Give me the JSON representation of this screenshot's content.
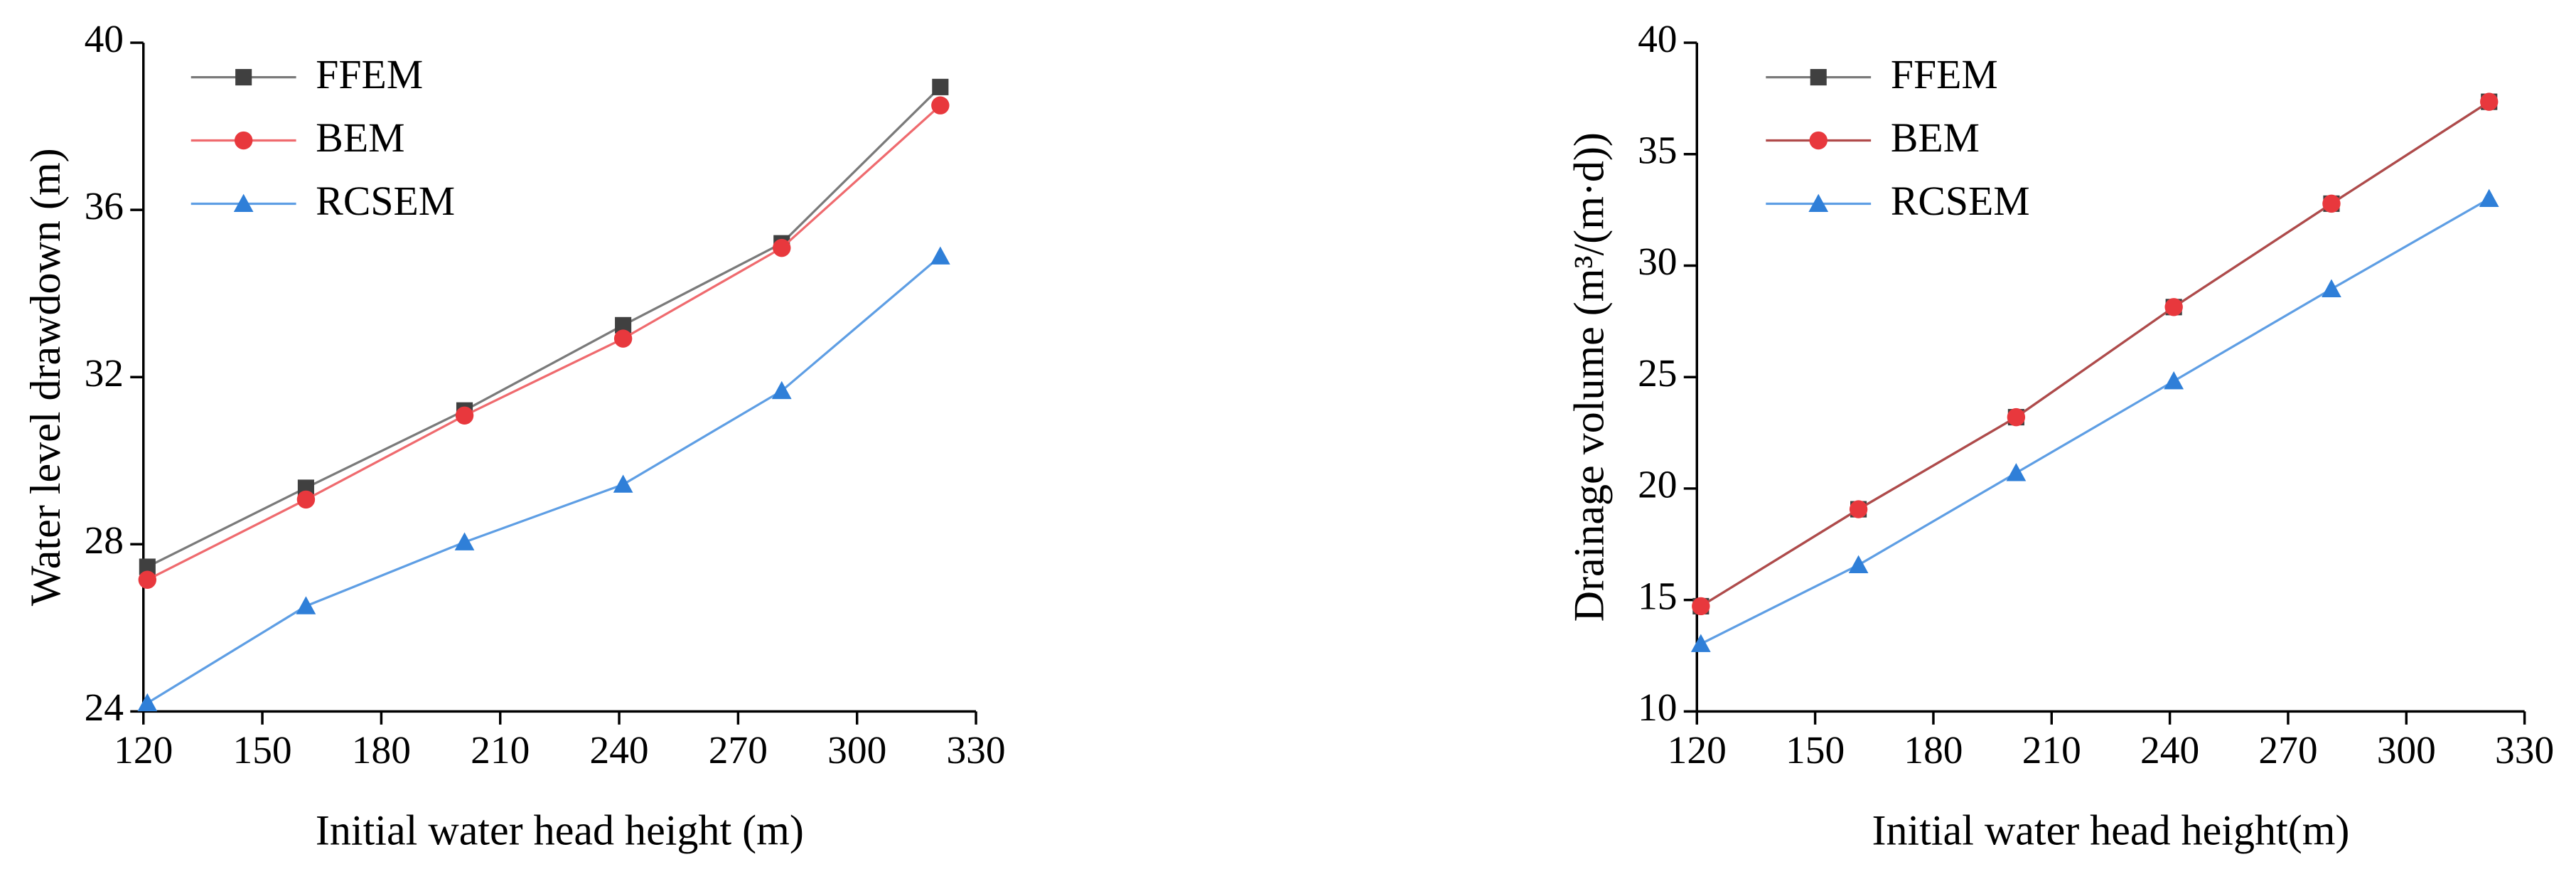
{
  "chart_data": [
    {
      "type": "line",
      "xlabel": "Initial water head height (m)",
      "ylabel": "Water level drawdown (m)",
      "x": [
        121,
        161,
        201,
        241,
        281,
        321
      ],
      "xlim": [
        120,
        330
      ],
      "xticks": [
        120,
        150,
        180,
        210,
        240,
        270,
        300,
        330
      ],
      "ylim": [
        24,
        40
      ],
      "yticks": [
        24,
        28,
        32,
        36,
        40
      ],
      "legend": "upper-left",
      "series": [
        {
          "name": "FFEM",
          "color": "#404040",
          "line_color": "#7a7a7a",
          "marker": "square",
          "values": [
            27.46,
            29.35,
            31.2,
            33.24,
            35.2,
            38.94
          ]
        },
        {
          "name": "BEM",
          "color": "#e8383d",
          "line_color": "#ef6a6e",
          "marker": "circle",
          "values": [
            27.15,
            29.07,
            31.08,
            32.92,
            35.09,
            38.5
          ]
        },
        {
          "name": "RCSEM",
          "color": "#2f7fd8",
          "line_color": "#5e9ee4",
          "marker": "triangle",
          "values": [
            24.2,
            26.52,
            28.05,
            29.43,
            31.67,
            34.89
          ]
        }
      ]
    },
    {
      "type": "line",
      "xlabel": "Initial water head height(m)",
      "ylabel": "Drainage volume (m³/(m·d))",
      "x": [
        121,
        161,
        201,
        241,
        281,
        321
      ],
      "xlim": [
        120,
        330
      ],
      "xticks": [
        120,
        150,
        180,
        210,
        240,
        270,
        300,
        330
      ],
      "ylim": [
        10,
        40
      ],
      "yticks": [
        10,
        15,
        20,
        25,
        30,
        35,
        40
      ],
      "legend": "upper-left",
      "series": [
        {
          "name": "FFEM",
          "color": "#404040",
          "line_color": "#7a7a7a",
          "marker": "square",
          "values": [
            14.72,
            19.07,
            23.2,
            28.14,
            32.78,
            37.35
          ]
        },
        {
          "name": "BEM",
          "color": "#e8383d",
          "line_color": "#b04a4a",
          "marker": "circle",
          "values": [
            14.72,
            19.07,
            23.2,
            28.14,
            32.78,
            37.35
          ]
        },
        {
          "name": "RCSEM",
          "color": "#2f7fd8",
          "line_color": "#5e9ee4",
          "marker": "triangle",
          "values": [
            13.03,
            16.57,
            20.7,
            24.82,
            28.95,
            33.0
          ]
        }
      ]
    }
  ]
}
